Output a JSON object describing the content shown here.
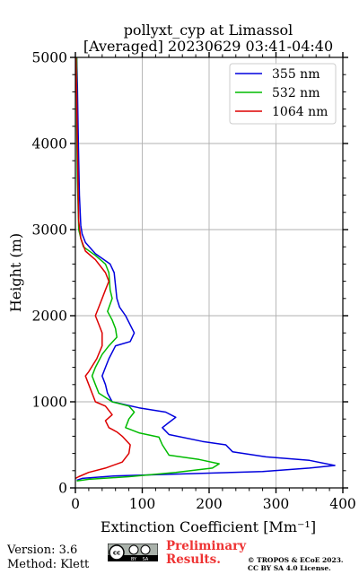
{
  "chart_data": {
    "type": "line",
    "title": "pollyxt_cyp at Limassol",
    "subtitle": "[Averaged] 20230629 03:41-04:40",
    "xlabel": "Extinction Coefficient [Mm⁻¹]",
    "ylabel": "Height (m)",
    "xlim": [
      0,
      400
    ],
    "ylim": [
      0,
      5000
    ],
    "xticks": [
      "0",
      "100",
      "200",
      "300",
      "400"
    ],
    "yticks": [
      "0",
      "1000",
      "2000",
      "3000",
      "4000",
      "5000"
    ],
    "grid": true,
    "legend_position": "top-right",
    "series": [
      {
        "name": "355 nm",
        "color": "#0000dd",
        "points": [
          [
            2,
            5000
          ],
          [
            3,
            4700
          ],
          [
            4,
            4200
          ],
          [
            5,
            3800
          ],
          [
            6,
            3400
          ],
          [
            8,
            3050
          ],
          [
            10,
            2950
          ],
          [
            15,
            2850
          ],
          [
            30,
            2720
          ],
          [
            52,
            2600
          ],
          [
            58,
            2500
          ],
          [
            60,
            2350
          ],
          [
            62,
            2200
          ],
          [
            66,
            2100
          ],
          [
            75,
            2000
          ],
          [
            88,
            1800
          ],
          [
            82,
            1700
          ],
          [
            60,
            1650
          ],
          [
            50,
            1500
          ],
          [
            45,
            1400
          ],
          [
            40,
            1300
          ],
          [
            45,
            1200
          ],
          [
            48,
            1100
          ],
          [
            55,
            1000
          ],
          [
            95,
            930
          ],
          [
            135,
            880
          ],
          [
            150,
            820
          ],
          [
            140,
            760
          ],
          [
            130,
            700
          ],
          [
            140,
            620
          ],
          [
            190,
            540
          ],
          [
            225,
            500
          ],
          [
            235,
            420
          ],
          [
            285,
            360
          ],
          [
            350,
            320
          ],
          [
            388,
            260
          ],
          [
            350,
            230
          ],
          [
            280,
            190
          ],
          [
            150,
            160
          ],
          [
            60,
            140
          ],
          [
            10,
            110
          ],
          [
            2,
            90
          ]
        ]
      },
      {
        "name": "532 nm",
        "color": "#00bb00",
        "points": [
          [
            2,
            5000
          ],
          [
            2,
            4200
          ],
          [
            3,
            3600
          ],
          [
            5,
            3000
          ],
          [
            8,
            2900
          ],
          [
            12,
            2800
          ],
          [
            30,
            2700
          ],
          [
            45,
            2600
          ],
          [
            50,
            2500
          ],
          [
            52,
            2300
          ],
          [
            55,
            2200
          ],
          [
            48,
            2050
          ],
          [
            55,
            1950
          ],
          [
            60,
            1850
          ],
          [
            62,
            1750
          ],
          [
            50,
            1650
          ],
          [
            40,
            1550
          ],
          [
            30,
            1400
          ],
          [
            25,
            1300
          ],
          [
            30,
            1200
          ],
          [
            35,
            1100
          ],
          [
            55,
            1000
          ],
          [
            80,
            950
          ],
          [
            88,
            880
          ],
          [
            80,
            800
          ],
          [
            75,
            700
          ],
          [
            95,
            640
          ],
          [
            125,
            590
          ],
          [
            130,
            500
          ],
          [
            140,
            380
          ],
          [
            185,
            330
          ],
          [
            215,
            280
          ],
          [
            205,
            230
          ],
          [
            150,
            180
          ],
          [
            80,
            130
          ],
          [
            20,
            100
          ],
          [
            2,
            80
          ]
        ]
      },
      {
        "name": "1064 nm",
        "color": "#dd0000",
        "points": [
          [
            1,
            5000
          ],
          [
            2,
            4500
          ],
          [
            3,
            4000
          ],
          [
            4,
            3500
          ],
          [
            5,
            3100
          ],
          [
            8,
            2900
          ],
          [
            15,
            2750
          ],
          [
            30,
            2650
          ],
          [
            45,
            2500
          ],
          [
            50,
            2400
          ],
          [
            45,
            2300
          ],
          [
            40,
            2200
          ],
          [
            35,
            2100
          ],
          [
            30,
            2000
          ],
          [
            35,
            1900
          ],
          [
            40,
            1800
          ],
          [
            40,
            1650
          ],
          [
            32,
            1500
          ],
          [
            20,
            1350
          ],
          [
            15,
            1300
          ],
          [
            20,
            1200
          ],
          [
            25,
            1100
          ],
          [
            30,
            1000
          ],
          [
            45,
            950
          ],
          [
            55,
            850
          ],
          [
            45,
            780
          ],
          [
            50,
            700
          ],
          [
            62,
            650
          ],
          [
            70,
            600
          ],
          [
            82,
            500
          ],
          [
            80,
            400
          ],
          [
            70,
            300
          ],
          [
            45,
            230
          ],
          [
            20,
            180
          ],
          [
            5,
            130
          ],
          [
            0,
            110
          ]
        ]
      }
    ]
  },
  "footer": {
    "version": "Version: 3.6",
    "method": "Method: Klett",
    "cc_logo": "cc-by-sa-icon",
    "cc_logo_text": [
      "cc",
      "BY",
      "SA"
    ],
    "preliminary_line1": "Preliminary",
    "preliminary_line2": "Results.",
    "copyright_line1": "© TROPOS & ECoE 2023.",
    "copyright_line2": "CC BY SA 4.0 License."
  }
}
